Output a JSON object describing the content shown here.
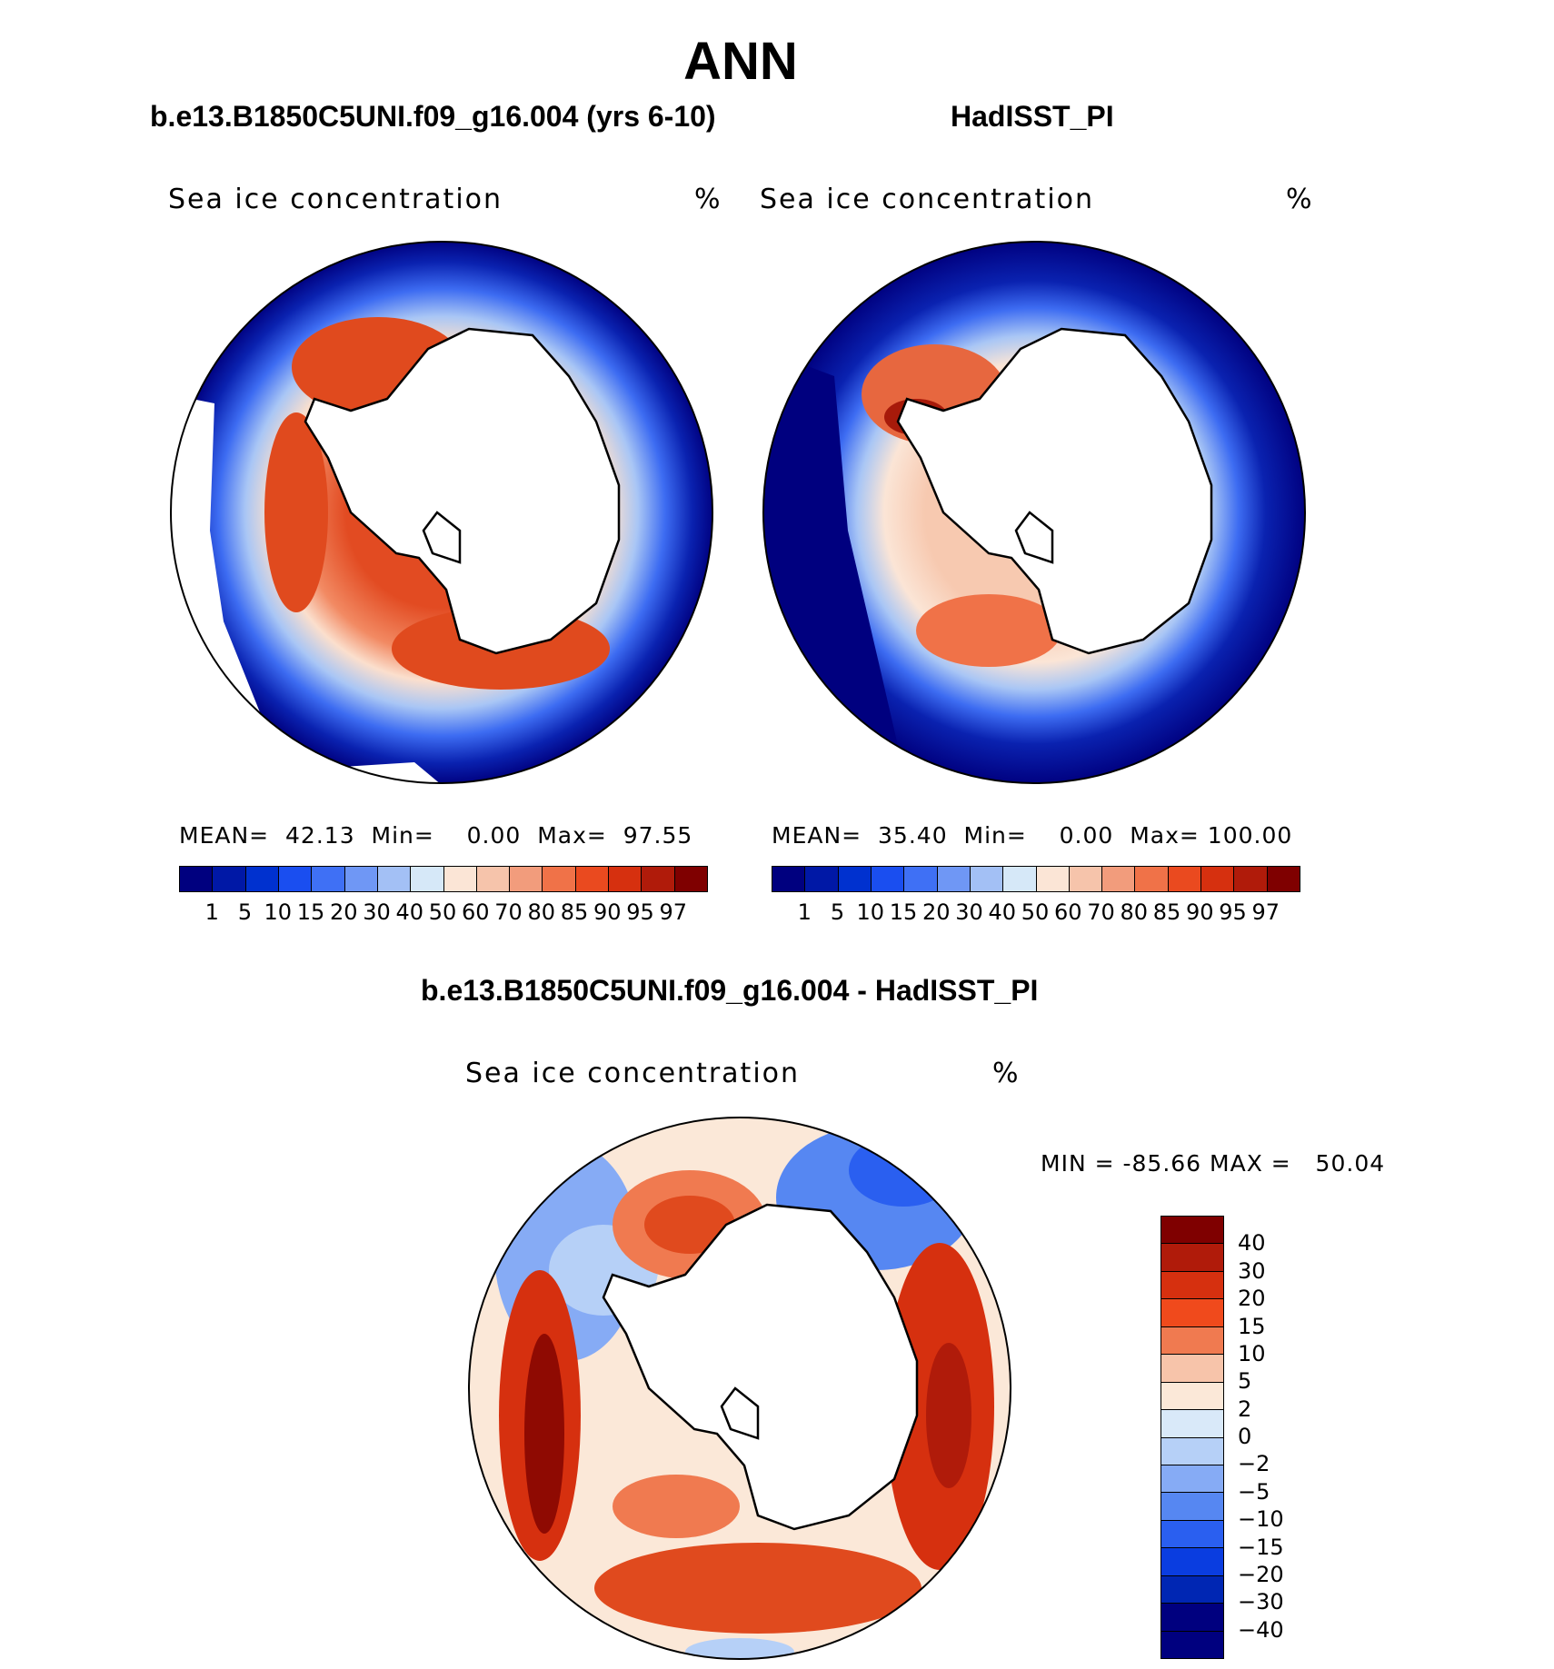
{
  "title": "ANN",
  "panels": [
    {
      "case": "b.e13.B1850C5UNI.f09_g16.004 (yrs 6-10)",
      "variable": "Sea ice concentration",
      "units": "%",
      "mean_label": "MEAN=",
      "mean": "42.13",
      "min_label": "Min=",
      "min": "0.00",
      "max_label": "Max=",
      "max": "97.55"
    },
    {
      "case": "HadISST_PI",
      "variable": "Sea ice concentration",
      "units": "%",
      "mean_label": "MEAN=",
      "mean": "35.40",
      "min_label": "Min=",
      "min": "0.00",
      "max_label": "Max=",
      "max": "100.00"
    }
  ],
  "colorbar": {
    "colors": [
      "#00007f",
      "#0018a6",
      "#0031cf",
      "#1a4ef0",
      "#3f70f5",
      "#6f97f5",
      "#a3c0f5",
      "#d6e8f8",
      "#fbe5d6",
      "#f6c4ab",
      "#f29c7c",
      "#f07248",
      "#ea4a1f",
      "#d6300f",
      "#b01b0a",
      "#7f0000"
    ],
    "labels": [
      "1",
      "5",
      "10",
      "15",
      "20",
      "30",
      "40",
      "50",
      "60",
      "70",
      "80",
      "85",
      "90",
      "95",
      "97"
    ]
  },
  "diff": {
    "title": "b.e13.B1850C5UNI.f09_g16.004 - HadISST_PI",
    "variable": "Sea ice concentration",
    "units": "%",
    "minmax": "MIN = -85.66 MAX =   50.04",
    "colorbar": {
      "colors": [
        "#7f0000",
        "#b01b0a",
        "#d6300f",
        "#f04a1c",
        "#f07a50",
        "#f7c4aa",
        "#fbe8d8",
        "#d9e9f9",
        "#b6d0f7",
        "#86abf5",
        "#5687f2",
        "#2a5ff0",
        "#0a3de0",
        "#0026b3",
        "#00007f"
      ],
      "labels": [
        "40",
        "30",
        "20",
        "15",
        "10",
        "5",
        "2",
        "0",
        "−2",
        "−5",
        "−10",
        "−15",
        "−20",
        "−30",
        "−40"
      ]
    }
  }
}
